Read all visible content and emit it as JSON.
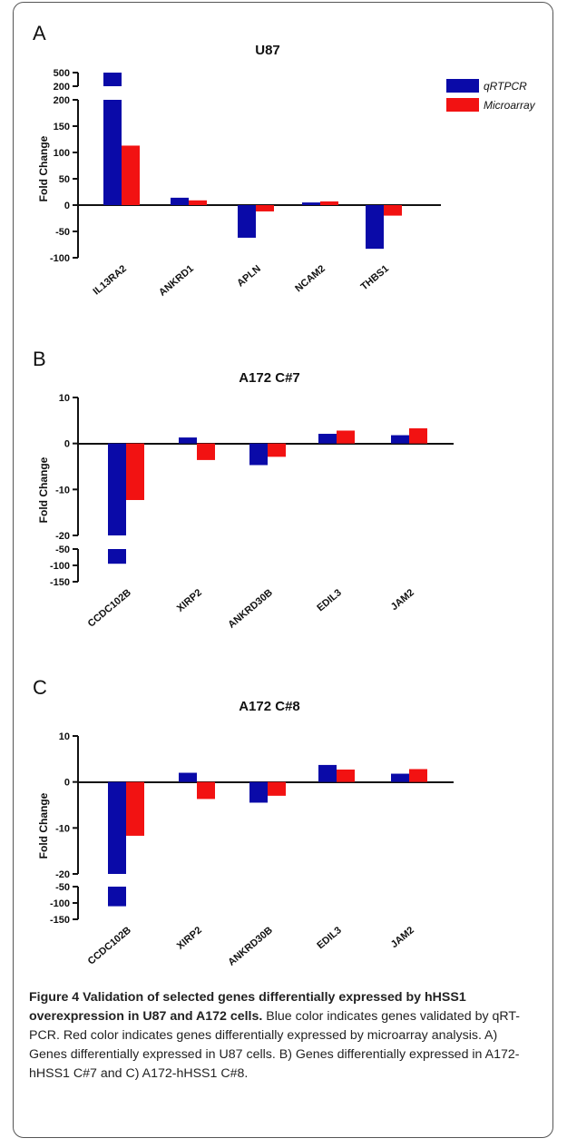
{
  "legend": {
    "items": [
      {
        "label": "qRTPCR",
        "color": "#0a0aa8"
      },
      {
        "label": "Microarray",
        "color": "#f21212"
      }
    ]
  },
  "chart_data": [
    {
      "panel": "A",
      "type": "bar",
      "title": "U87",
      "ylabel": "Fold Change",
      "xlabel": "",
      "categories": [
        "IL13RA2",
        "ANKRD1",
        "APLN",
        "NCAM2",
        "THBS1"
      ],
      "series": [
        {
          "name": "qRTPCR",
          "color": "#0a0aa8",
          "values": [
            500,
            14,
            -62,
            5,
            -83
          ]
        },
        {
          "name": "Microarray",
          "color": "#f21212",
          "values": [
            113,
            9,
            -12,
            7,
            -20
          ]
        }
      ],
      "broken_axis": true,
      "yticks_lower": [
        -100,
        -50,
        0,
        50,
        100,
        150,
        200
      ],
      "yticks_upper": [
        200,
        500
      ],
      "grid": false,
      "legend_position": "top-right"
    },
    {
      "panel": "B",
      "type": "bar",
      "title": "A172  C#7",
      "ylabel": "Fold Change",
      "xlabel": "",
      "categories": [
        "CCDC102B",
        "XIRP2",
        "ANKRD30B",
        "EDIL3",
        "JAM2"
      ],
      "series": [
        {
          "name": "qRTPCR",
          "color": "#0a0aa8",
          "values": [
            -95,
            1.3,
            -4.7,
            2.1,
            1.8
          ]
        },
        {
          "name": "Microarray",
          "color": "#f21212",
          "values": [
            -12.3,
            -3.6,
            -2.9,
            2.8,
            3.3
          ]
        }
      ],
      "broken_axis": true,
      "yticks_upper": [
        -20,
        -10,
        0,
        10
      ],
      "yticks_lower": [
        -150,
        -100,
        -50
      ],
      "grid": false
    },
    {
      "panel": "C",
      "type": "bar",
      "title": "A172  C#8",
      "ylabel": "Fold Change",
      "xlabel": "",
      "categories": [
        "CCDC102B",
        "XIRP2",
        "ANKRD30B",
        "EDIL3",
        "JAM2"
      ],
      "series": [
        {
          "name": "qRTPCR",
          "color": "#0a0aa8",
          "values": [
            -110,
            2.0,
            -4.5,
            3.7,
            1.8
          ]
        },
        {
          "name": "Microarray",
          "color": "#f21212",
          "values": [
            -11.7,
            -3.7,
            -3.0,
            2.7,
            2.8
          ]
        }
      ],
      "broken_axis": true,
      "yticks_upper": [
        -20,
        -10,
        0,
        10
      ],
      "yticks_lower": [
        -150,
        -100,
        -50
      ],
      "grid": false
    }
  ],
  "caption": {
    "title": "Figure 4 Validation of selected genes differentially expressed by hHSS1 overexpression in U87 and A172 cells.",
    "body": "Blue color indicates genes validated by qRT-PCR. Red color indicates genes differentially expressed by microarray analysis. A) Genes differentially expressed in U87 cells. B) Genes differentially expressed in A172-hHSS1 C#7 and C) A172-hHSS1 C#8."
  }
}
